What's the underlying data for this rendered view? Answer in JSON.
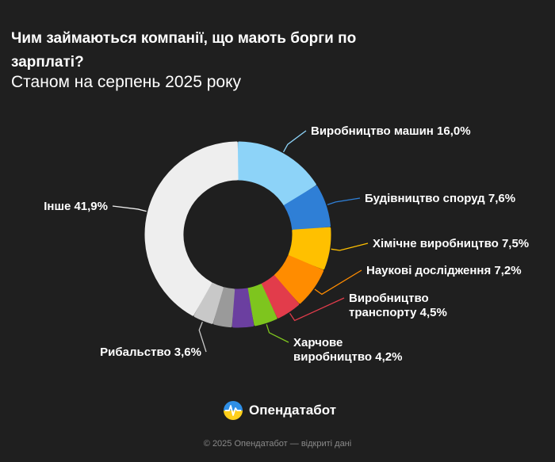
{
  "header": {
    "title": "Чим займаються компанії, що мають борги по зарплаті?",
    "subtitle": "Станом на серпень 2025 року"
  },
  "chart_data": {
    "type": "pie",
    "title": "Чим займаються компанії, що мають борги по зарплаті?",
    "subtitle": "Станом на серпень 2025 року",
    "unit": "%",
    "slices": [
      {
        "label": "Виробництво машин",
        "value": 16.0,
        "color": "#8dd3f8"
      },
      {
        "label": "Будівництво споруд",
        "value": 7.6,
        "color": "#2f7fd6"
      },
      {
        "label": "Хімічне виробництво",
        "value": 7.5,
        "color": "#ffc000"
      },
      {
        "label": "Наукові дослідження",
        "value": 7.2,
        "color": "#ff8c00"
      },
      {
        "label": "Виробництво транспорту",
        "value": 4.5,
        "color": "#e23c4b"
      },
      {
        "label": "Харчове виробництво",
        "value": 4.2,
        "color": "#7ec51e"
      },
      {
        "label": "",
        "value": 3.8,
        "color": "#6b3fa0"
      },
      {
        "label": "",
        "value": 3.3,
        "color": "#9a9a9a"
      },
      {
        "label": "Рибальство",
        "value": 3.6,
        "color": "#c8c8c8"
      },
      {
        "label": "Інше",
        "value": 41.9,
        "color": "#eeeeee"
      }
    ],
    "labels": [
      {
        "lines": [
          "Виробництво машин 16,0%"
        ],
        "slice": 0
      },
      {
        "lines": [
          "Будівництво споруд 7,6%"
        ],
        "slice": 1
      },
      {
        "lines": [
          "Хімічне виробництво 7,5%"
        ],
        "slice": 2
      },
      {
        "lines": [
          "Наукові дослідження 7,2%"
        ],
        "slice": 3
      },
      {
        "lines": [
          "Виробництво",
          "транспорту 4,5%"
        ],
        "slice": 4
      },
      {
        "lines": [
          "Харчове",
          "виробництво 4,2%"
        ],
        "slice": 5
      },
      {
        "lines": [
          "Рибальство 3,6%"
        ],
        "slice": 8
      },
      {
        "lines": [
          "Інше 41,9%"
        ],
        "slice": 9
      }
    ]
  },
  "brand": {
    "name": "Опендатабот"
  },
  "footer": {
    "text": "© 2025 Опендатабот — відкриті дані"
  }
}
